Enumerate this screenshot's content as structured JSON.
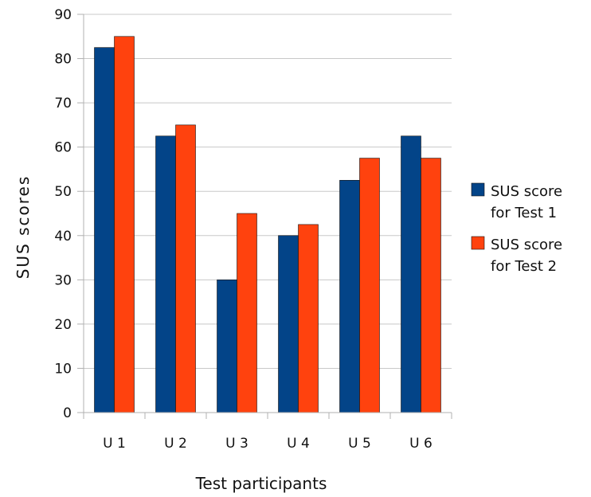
{
  "chart_data": {
    "type": "bar",
    "categories": [
      "U 1",
      "U 2",
      "U 3",
      "U 4",
      "U 5",
      "U 6"
    ],
    "series": [
      {
        "name": "SUS score for Test 1",
        "name_lines": [
          "SUS score",
          "for Test 1"
        ],
        "values": [
          82.5,
          62.5,
          30,
          40,
          52.5,
          62.5
        ],
        "color": "#034488"
      },
      {
        "name": "SUS score for Test 2",
        "name_lines": [
          "SUS score",
          "for Test 2"
        ],
        "values": [
          85,
          65,
          45,
          42.5,
          57.5,
          57.5
        ],
        "color": "#ff420e"
      }
    ],
    "title": "",
    "xlabel": "Test participants",
    "ylabel": "SUS scores",
    "ylim": [
      0,
      90
    ],
    "yticks": [
      0,
      10,
      20,
      30,
      40,
      50,
      60,
      70,
      80,
      90
    ],
    "grid": true,
    "legend_position": "right"
  }
}
